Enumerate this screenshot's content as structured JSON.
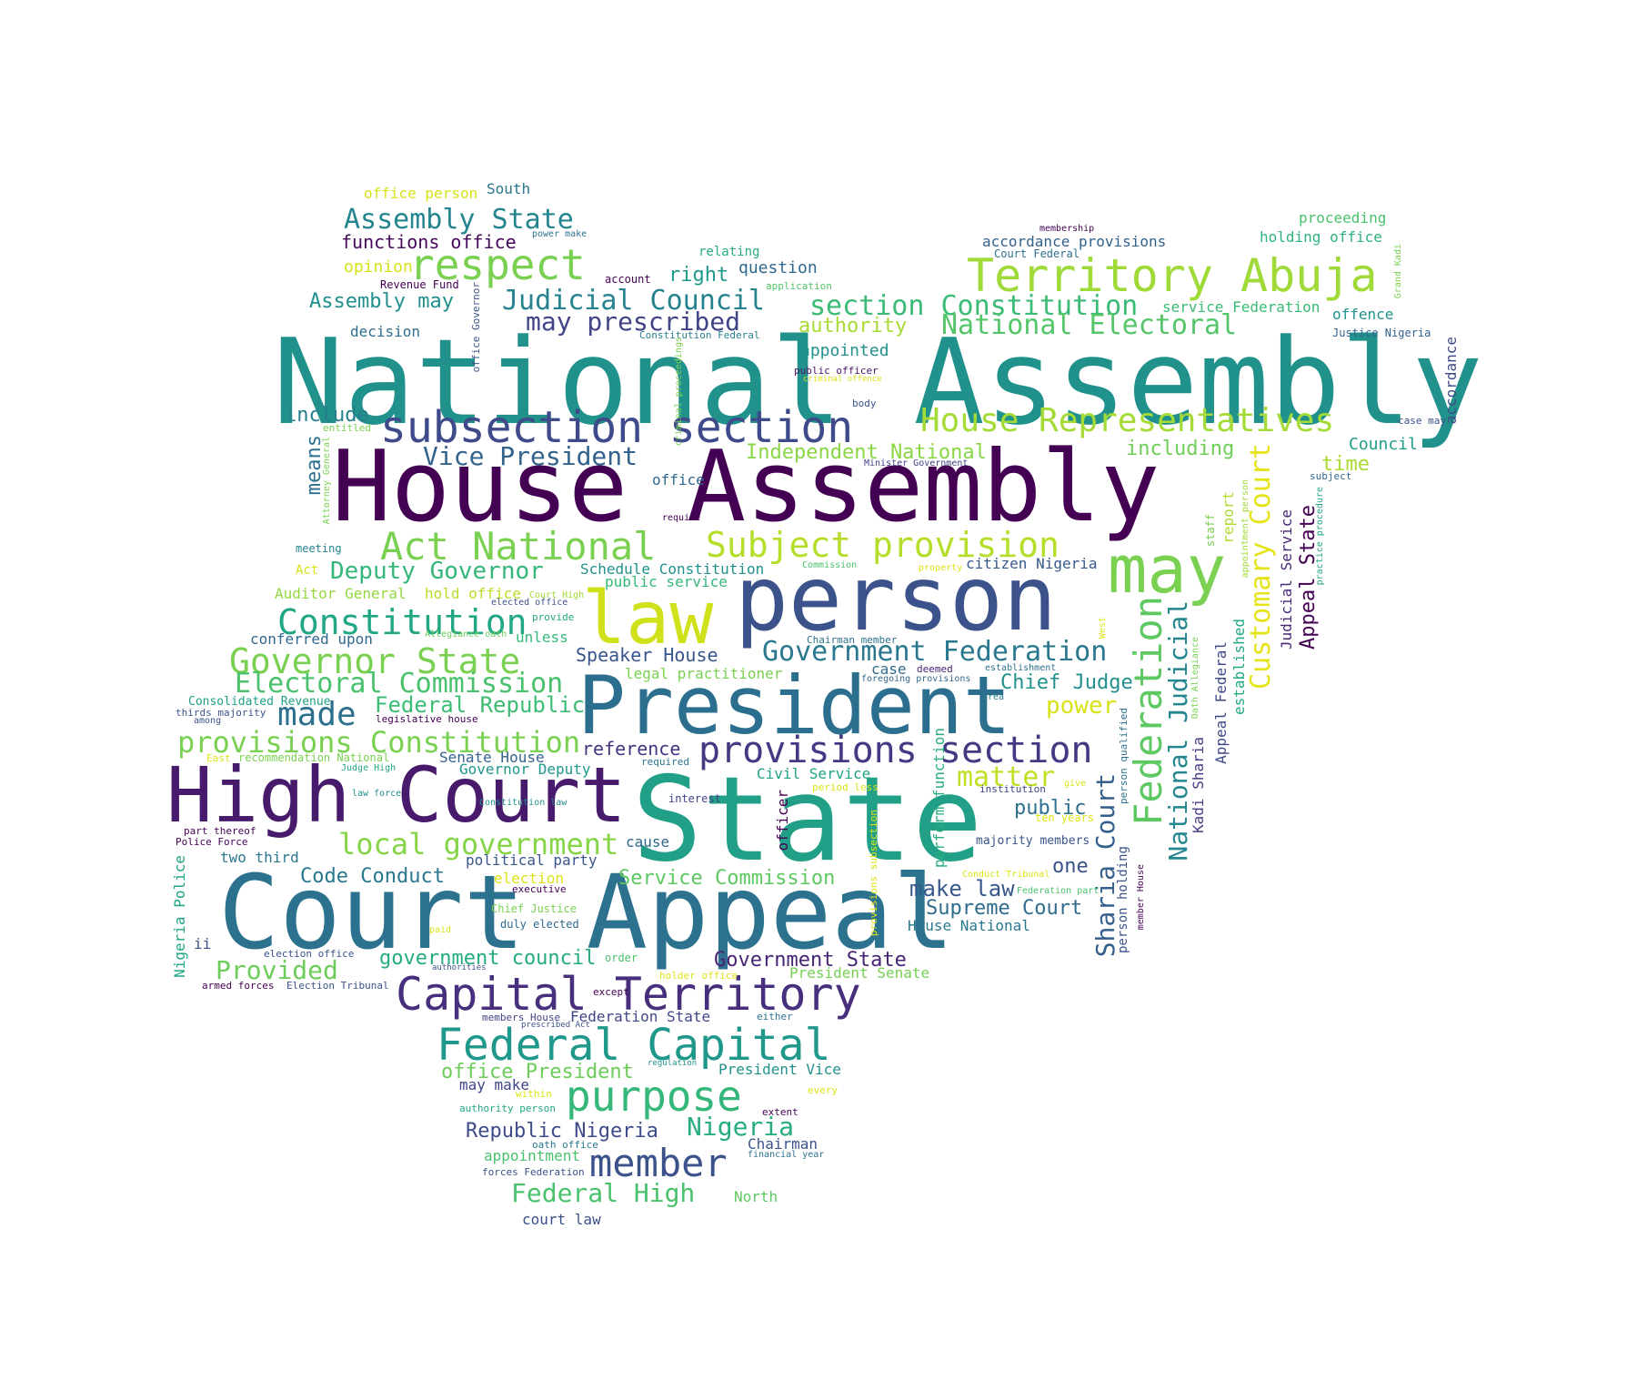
{
  "words": [
    {
      "text": "National Assembly",
      "color": "#21918c"
    },
    {
      "text": "House Assembly",
      "color": "#440154"
    },
    {
      "text": "State",
      "color": "#21a087"
    },
    {
      "text": "Court Appeal",
      "color": "#2c728e"
    },
    {
      "text": "person",
      "color": "#3b528b"
    },
    {
      "text": "President",
      "color": "#2c6e8e"
    },
    {
      "text": "High Court",
      "color": "#481a6c"
    },
    {
      "text": "law",
      "color": "#d0e11c"
    },
    {
      "text": "may",
      "color": "#7ad151"
    },
    {
      "text": "subsection section",
      "color": "#3e4a89"
    },
    {
      "text": "Territory Abuja",
      "color": "#a0da39"
    },
    {
      "text": "Act National",
      "color": "#7ad151"
    },
    {
      "text": "Subject provision",
      "color": "#b5de2b"
    },
    {
      "text": "Capital Territory",
      "color": "#472f7d"
    },
    {
      "text": "Federal Capital",
      "color": "#1f988b"
    },
    {
      "text": "respect",
      "color": "#7ad151"
    },
    {
      "text": "Constitution",
      "color": "#22a785"
    },
    {
      "text": "Governor State",
      "color": "#7ad151"
    },
    {
      "text": "provisions section",
      "color": "#443983"
    },
    {
      "text": "purpose",
      "color": "#35b779"
    },
    {
      "text": "member",
      "color": "#3b528b"
    },
    {
      "text": "Federation",
      "color": "#5ec962"
    },
    {
      "text": "House Representatives",
      "color": "#a5db36"
    },
    {
      "text": "section Constitution",
      "color": "#3bbb75"
    },
    {
      "text": "National Electoral",
      "color": "#54c568"
    },
    {
      "text": "Government Federation",
      "color": "#2a788e"
    },
    {
      "text": "Electoral Commission",
      "color": "#4ac16d"
    },
    {
      "text": "made",
      "color": "#2d708e"
    },
    {
      "text": "provisions Constitution",
      "color": "#7ad151"
    },
    {
      "text": "local government",
      "color": "#86d549"
    },
    {
      "text": "Judicial Council",
      "color": "#26828e"
    },
    {
      "text": "Assembly State",
      "color": "#25858e"
    },
    {
      "text": "may prescribed",
      "color": "#414487"
    },
    {
      "text": "Vice President",
      "color": "#33638d"
    },
    {
      "text": "Deputy Governor",
      "color": "#35b779"
    },
    {
      "text": "Customary Court",
      "color": "#e5e419"
    },
    {
      "text": "National Judicial",
      "color": "#24868e"
    },
    {
      "text": "Sharia Court",
      "color": "#355f8d"
    },
    {
      "text": "matter",
      "color": "#c2df23"
    },
    {
      "text": "Federal Republic",
      "color": "#3dbc74"
    },
    {
      "text": "Provided",
      "color": "#6ccd5a"
    },
    {
      "text": "Federal High",
      "color": "#4ac16d"
    },
    {
      "text": "Nigeria",
      "color": "#27ad81"
    },
    {
      "text": "Government State",
      "color": "#482475"
    },
    {
      "text": "Service Commission",
      "color": "#5ec962"
    },
    {
      "text": "Independent National",
      "color": "#8bd646"
    },
    {
      "text": "Chief Judge",
      "color": "#21918c"
    },
    {
      "text": "power",
      "color": "#d8e219"
    },
    {
      "text": "Supreme Court",
      "color": "#2f6c8e"
    },
    {
      "text": "make law",
      "color": "#38588c"
    },
    {
      "text": "Code Conduct",
      "color": "#2a788e"
    },
    {
      "text": "government council",
      "color": "#25ab82"
    },
    {
      "text": "Republic Nigeria",
      "color": "#3e4c8a"
    },
    {
      "text": "office President",
      "color": "#6ccd5a"
    },
    {
      "text": "Speaker House",
      "color": "#39568c"
    },
    {
      "text": "reference",
      "color": "#46327e"
    },
    {
      "text": "public",
      "color": "#2d708e"
    },
    {
      "text": "one",
      "color": "#3b528b"
    },
    {
      "text": "authority",
      "color": "#a8db34"
    },
    {
      "text": "appointed",
      "color": "#21918c"
    },
    {
      "text": "Appeal State",
      "color": "#440154"
    },
    {
      "text": "including",
      "color": "#6ece58"
    },
    {
      "text": "time",
      "color": "#aadc32"
    },
    {
      "text": "Council",
      "color": "#1f9e89"
    },
    {
      "text": "include",
      "color": "#277f8e"
    },
    {
      "text": "means",
      "color": "#2d718e"
    },
    {
      "text": "functions office",
      "color": "#46085c"
    },
    {
      "text": "opinion",
      "color": "#d5e21a"
    },
    {
      "text": "Assembly may",
      "color": "#218f8d"
    },
    {
      "text": "right",
      "color": "#1f9a8a"
    },
    {
      "text": "question",
      "color": "#31688e"
    },
    {
      "text": "relating",
      "color": "#26ad81"
    },
    {
      "text": "decision",
      "color": "#2e6e8e"
    },
    {
      "text": "office",
      "color": "#30698e"
    },
    {
      "text": "Chairman",
      "color": "#3a548c"
    },
    {
      "text": "court law",
      "color": "#3b528b"
    },
    {
      "text": "North",
      "color": "#5ec962"
    },
    {
      "text": "appointment",
      "color": "#4ac16d"
    },
    {
      "text": "may make",
      "color": "#414487"
    },
    {
      "text": "President Vice",
      "color": "#21918c"
    },
    {
      "text": "Federation State",
      "color": "#3f4788"
    },
    {
      "text": "President Senate",
      "color": "#75d054"
    },
    {
      "text": "Civil Service",
      "color": "#20a386"
    },
    {
      "text": "Senate House",
      "color": "#33638d"
    },
    {
      "text": "Governor Deputy",
      "color": "#1f988b"
    },
    {
      "text": "political party",
      "color": "#3a548c"
    },
    {
      "text": "two third",
      "color": "#2a788e"
    },
    {
      "text": "election",
      "color": "#dde318"
    },
    {
      "text": "cause",
      "color": "#30698e"
    },
    {
      "text": "Auditor General",
      "color": "#95d840"
    },
    {
      "text": "hold office",
      "color": "#b8de29"
    },
    {
      "text": "Schedule Constitution",
      "color": "#21918c"
    },
    {
      "text": "public service",
      "color": "#35b779"
    },
    {
      "text": "legal practitioner",
      "color": "#7ad151"
    },
    {
      "text": "citizen Nigeria",
      "color": "#38588c"
    },
    {
      "text": "conferred upon",
      "color": "#31688e"
    },
    {
      "text": "unless",
      "color": "#37b878"
    },
    {
      "text": "Consolidated Revenue",
      "color": "#1fa187"
    },
    {
      "text": "holding office",
      "color": "#2db27d"
    },
    {
      "text": "proceeding",
      "color": "#4ac16d"
    },
    {
      "text": "offence",
      "color": "#21918c"
    },
    {
      "text": "service Federation",
      "color": "#3bbb75"
    },
    {
      "text": "accordance provisions",
      "color": "#33638d"
    },
    {
      "text": "accordance",
      "color": "#3e4a89"
    },
    {
      "text": "office person",
      "color": "#d8e219"
    },
    {
      "text": "South",
      "color": "#2a768e"
    },
    {
      "text": "Nigeria Police",
      "color": "#20a486"
    },
    {
      "text": "Appeal Federal",
      "color": "#3e4989"
    },
    {
      "text": "Judicial Service",
      "color": "#482878"
    },
    {
      "text": "established",
      "color": "#22a884"
    },
    {
      "text": "Kadi Sharia",
      "color": "#433e85"
    },
    {
      "text": "report",
      "color": "#b0dd2f"
    },
    {
      "text": "person holding",
      "color": "#3b528b"
    },
    {
      "text": "perform function",
      "color": "#29af7f"
    },
    {
      "text": "officer",
      "color": "#440154"
    },
    {
      "text": "majority members",
      "color": "#3a538b"
    },
    {
      "text": "House National",
      "color": "#2a788e"
    },
    {
      "text": "Revenue Fund",
      "color": "#440154"
    },
    {
      "text": "account",
      "color": "#440154"
    },
    {
      "text": "application",
      "color": "#52c569"
    },
    {
      "text": "membership",
      "color": "#440154"
    },
    {
      "text": "Court Federal",
      "color": "#2e6f8e"
    },
    {
      "text": "Justice Nigeria",
      "color": "#33638d"
    },
    {
      "text": "case may",
      "color": "#3b528b"
    },
    {
      "text": "subject",
      "color": "#30698e"
    },
    {
      "text": "Minister Government",
      "color": "#414487"
    },
    {
      "text": "body",
      "color": "#3b528b"
    },
    {
      "text": "public officer",
      "color": "#481467"
    },
    {
      "text": "criminal offence",
      "color": "#dde318"
    },
    {
      "text": "Constitution Federal",
      "color": "#26818e"
    },
    {
      "text": "power make",
      "color": "#2d708e"
    },
    {
      "text": "entitled",
      "color": "#7ad151"
    },
    {
      "text": "meeting",
      "color": "#25838e"
    },
    {
      "text": "require",
      "color": "#440154"
    },
    {
      "text": "Act",
      "color": "#d8e219"
    },
    {
      "text": "elected office",
      "color": "#3b528b"
    },
    {
      "text": "Court High",
      "color": "#a2da37"
    },
    {
      "text": "provide",
      "color": "#22a785"
    },
    {
      "text": "Allegiance oath",
      "color": "#6ccd5a"
    },
    {
      "text": "Chairman member",
      "color": "#2c728e"
    },
    {
      "text": "deemed",
      "color": "#482475"
    },
    {
      "text": "establishment",
      "color": "#2c728e"
    },
    {
      "text": "foregoing provisions",
      "color": "#31688e"
    },
    {
      "text": "area",
      "color": "#2a788e"
    },
    {
      "text": "property",
      "color": "#dde318"
    },
    {
      "text": "Commission",
      "color": "#4ac16d"
    },
    {
      "text": "case",
      "color": "#30698e"
    },
    {
      "text": "institution",
      "color": "#414487"
    },
    {
      "text": "give",
      "color": "#dde318"
    },
    {
      "text": "ten years",
      "color": "#dde318"
    },
    {
      "text": "interest",
      "color": "#414487"
    },
    {
      "text": "period less",
      "color": "#dde318"
    },
    {
      "text": "Conduct Tribunal",
      "color": "#dde318"
    },
    {
      "text": "Federation part",
      "color": "#4ac16d"
    },
    {
      "text": "Constitution law",
      "color": "#21918c"
    },
    {
      "text": "executive",
      "color": "#440154"
    },
    {
      "text": "Chief Justice",
      "color": "#7ad151"
    },
    {
      "text": "duly elected",
      "color": "#30698e"
    },
    {
      "text": "paid",
      "color": "#dde318"
    },
    {
      "text": "election office",
      "color": "#3b528b"
    },
    {
      "text": "order",
      "color": "#4ac16d"
    },
    {
      "text": "authorities",
      "color": "#3b528b"
    },
    {
      "text": "holder office",
      "color": "#dde318"
    },
    {
      "text": "except",
      "color": "#440154"
    },
    {
      "text": "members House",
      "color": "#414487"
    },
    {
      "text": "prescribed Act",
      "color": "#3b528b"
    },
    {
      "text": "either",
      "color": "#2c728e"
    },
    {
      "text": "regulation",
      "color": "#21918c"
    },
    {
      "text": "within",
      "color": "#dde318"
    },
    {
      "text": "every",
      "color": "#dde318"
    },
    {
      "text": "extent",
      "color": "#440154"
    },
    {
      "text": "authority person",
      "color": "#22a785"
    },
    {
      "text": "oath office",
      "color": "#2a788e"
    },
    {
      "text": "forces Federation",
      "color": "#3b528b"
    },
    {
      "text": "financial year",
      "color": "#2c728e"
    },
    {
      "text": "armed forces",
      "color": "#440154"
    },
    {
      "text": "Election Tribunal",
      "color": "#3b528b"
    },
    {
      "text": "ii",
      "color": "#3b528b"
    },
    {
      "text": "Police Force",
      "color": "#440154"
    },
    {
      "text": "part thereof",
      "color": "#440154"
    },
    {
      "text": "law force",
      "color": "#21918c"
    },
    {
      "text": "Judge High",
      "color": "#22a785"
    },
    {
      "text": "East",
      "color": "#dde318"
    },
    {
      "text": "recommendation National",
      "color": "#7ad151"
    },
    {
      "text": "required",
      "color": "#2c728e"
    },
    {
      "text": "legislative house",
      "color": "#440154"
    },
    {
      "text": "among",
      "color": "#3b528b"
    },
    {
      "text": "thirds majority",
      "color": "#3b528b"
    },
    {
      "text": "Attorney General",
      "color": "#7ad151"
    },
    {
      "text": "office Governor",
      "color": "#3b528b"
    },
    {
      "text": "criminal proceedings",
      "color": "#7ad151"
    },
    {
      "text": "provisions subsection",
      "color": "#dde318"
    },
    {
      "text": "person qualified",
      "color": "#2c728e"
    },
    {
      "text": "member House",
      "color": "#440154"
    },
    {
      "text": "Oath Allegiance",
      "color": "#7ad151"
    },
    {
      "text": "West",
      "color": "#dde318"
    },
    {
      "text": "Grand Kadi",
      "color": "#7ad151"
    },
    {
      "text": "staff",
      "color": "#7ad151"
    },
    {
      "text": "appointment person",
      "color": "#a0da39"
    },
    {
      "text": "practice procedure",
      "color": "#22a785"
    }
  ]
}
